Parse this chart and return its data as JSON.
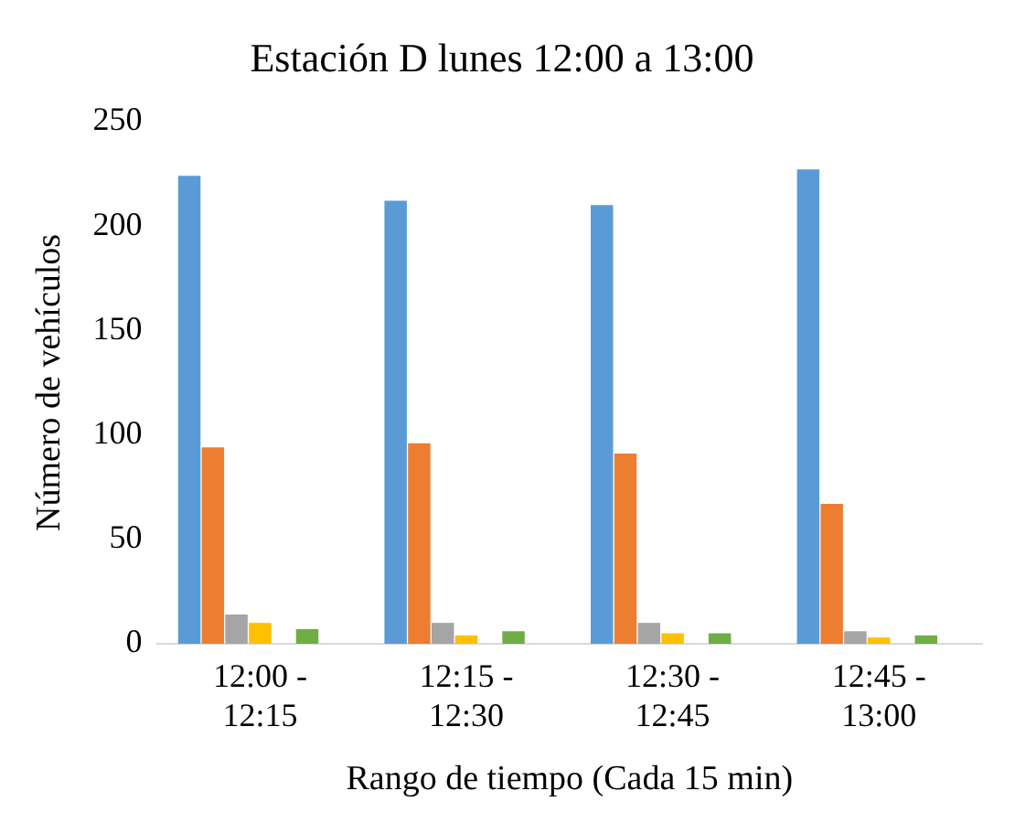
{
  "chart_data": {
    "type": "bar",
    "title": "Estación D lunes 12:00 a 13:00",
    "xlabel": "Rango de tiempo (Cada 15 min)",
    "ylabel": "Número de vehículos",
    "categories": [
      "12:00 - 12:15",
      "12:15 - 12:30",
      "12:30 - 12:45",
      "12:45 - 13:00"
    ],
    "series": [
      {
        "color": "#5b9bd5",
        "values": [
          224,
          212,
          210,
          227
        ]
      },
      {
        "color": "#ed7d31",
        "values": [
          94,
          96,
          91,
          67
        ]
      },
      {
        "color": "#a5a5a5",
        "values": [
          14,
          10,
          10,
          6
        ]
      },
      {
        "color": "#ffc000",
        "values": [
          10,
          4,
          5,
          3
        ]
      },
      {
        "color": "#4472c4",
        "values": [
          0,
          0,
          0,
          0
        ]
      },
      {
        "color": "#70ad47",
        "values": [
          7,
          6,
          5,
          4
        ]
      },
      {
        "color": "#264478",
        "values": [
          0,
          0,
          0,
          0
        ]
      }
    ],
    "ylim": [
      0,
      250
    ],
    "yticks": [
      0,
      50,
      100,
      150,
      200,
      250
    ],
    "grid": false,
    "legend": false
  }
}
